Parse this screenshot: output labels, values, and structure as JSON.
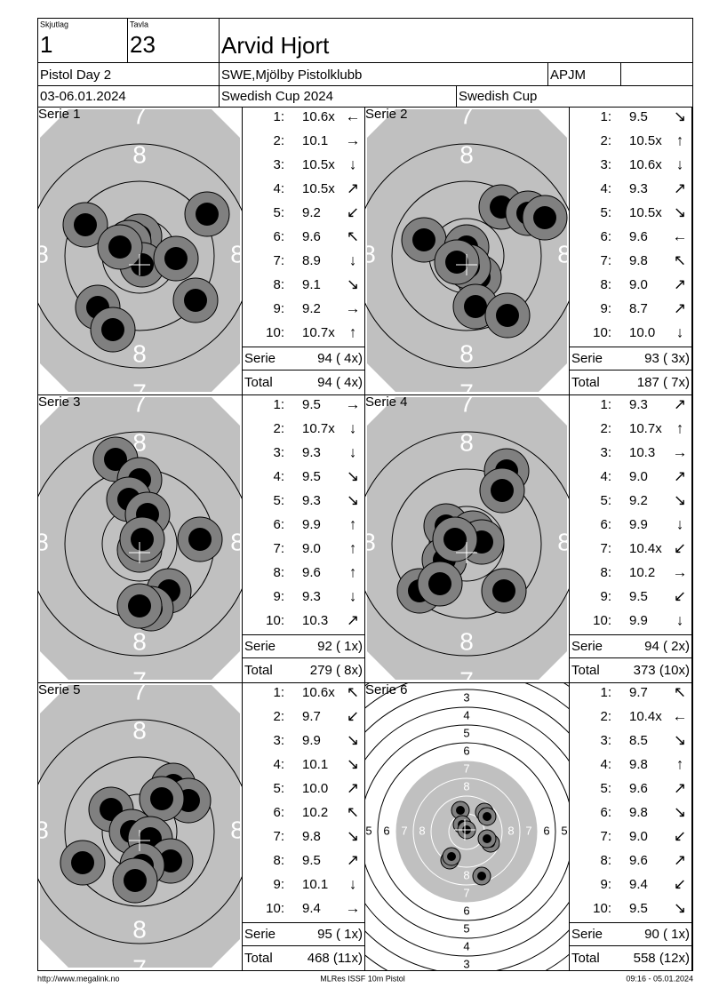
{
  "header": {
    "squad_label": "Skjutlag",
    "squad": "1",
    "target_label": "Tavla",
    "target": "23",
    "name": "Arvid Hjort",
    "event": "Pistol Day 2",
    "club": "SWE,Mjölby Pistolklubb",
    "class": "APJM",
    "dates": "03-06.01.2024",
    "competition": "Swedish Cup 2024",
    "cup": "Swedish Cup"
  },
  "labels": {
    "serie": "Serie",
    "total": "Total"
  },
  "zoom_target_labels": {
    "outer": "7",
    "inner": "8"
  },
  "full_target_labels": [
    "3",
    "4",
    "5",
    "6",
    "7",
    "8"
  ],
  "series": [
    {
      "title": "Serie 1",
      "shots": [
        {
          "number": "1:",
          "score": "10.6x",
          "direction": "←"
        },
        {
          "number": "2:",
          "score": "10.1",
          "direction": "→"
        },
        {
          "number": "3:",
          "score": "10.5x",
          "direction": "↓"
        },
        {
          "number": "4:",
          "score": "10.5x",
          "direction": "↗"
        },
        {
          "number": "5:",
          "score": "9.2",
          "direction": "↙"
        },
        {
          "number": "6:",
          "score": "9.6",
          "direction": "↖"
        },
        {
          "number": "7:",
          "score": "8.9",
          "direction": "↓"
        },
        {
          "number": "8:",
          "score": "9.1",
          "direction": "↘"
        },
        {
          "number": "9:",
          "score": "9.2",
          "direction": "→"
        },
        {
          "number": "10:",
          "score": "10.7x",
          "direction": "↑"
        }
      ],
      "serie_sum": "94 ( 4x)",
      "total": "94 ( 4x)"
    },
    {
      "title": "Serie 2",
      "shots": [
        {
          "number": "1:",
          "score": "9.5",
          "direction": "↘"
        },
        {
          "number": "2:",
          "score": "10.5x",
          "direction": "↑"
        },
        {
          "number": "3:",
          "score": "10.6x",
          "direction": "↓"
        },
        {
          "number": "4:",
          "score": "9.3",
          "direction": "↗"
        },
        {
          "number": "5:",
          "score": "10.5x",
          "direction": "↘"
        },
        {
          "number": "6:",
          "score": "9.6",
          "direction": "←"
        },
        {
          "number": "7:",
          "score": "9.8",
          "direction": "↖"
        },
        {
          "number": "8:",
          "score": "9.0",
          "direction": "↗"
        },
        {
          "number": "9:",
          "score": "8.7",
          "direction": "↗"
        },
        {
          "number": "10:",
          "score": "10.0",
          "direction": "↓"
        }
      ],
      "serie_sum": "93 ( 3x)",
      "total": "187 ( 7x)"
    },
    {
      "title": "Serie 3",
      "shots": [
        {
          "number": "1:",
          "score": "9.5",
          "direction": "→"
        },
        {
          "number": "2:",
          "score": "10.7x",
          "direction": "↓"
        },
        {
          "number": "3:",
          "score": "9.3",
          "direction": "↓"
        },
        {
          "number": "4:",
          "score": "9.5",
          "direction": "↘"
        },
        {
          "number": "5:",
          "score": "9.3",
          "direction": "↘"
        },
        {
          "number": "6:",
          "score": "9.9",
          "direction": "↑"
        },
        {
          "number": "7:",
          "score": "9.0",
          "direction": "↑"
        },
        {
          "number": "8:",
          "score": "9.6",
          "direction": "↑"
        },
        {
          "number": "9:",
          "score": "9.3",
          "direction": "↓"
        },
        {
          "number": "10:",
          "score": "10.3",
          "direction": "↗"
        }
      ],
      "serie_sum": "92 ( 1x)",
      "total": "279 ( 8x)"
    },
    {
      "title": "Serie 4",
      "shots": [
        {
          "number": "1:",
          "score": "9.3",
          "direction": "↗"
        },
        {
          "number": "2:",
          "score": "10.7x",
          "direction": "↑"
        },
        {
          "number": "3:",
          "score": "10.3",
          "direction": "→"
        },
        {
          "number": "4:",
          "score": "9.0",
          "direction": "↗"
        },
        {
          "number": "5:",
          "score": "9.2",
          "direction": "↘"
        },
        {
          "number": "6:",
          "score": "9.9",
          "direction": "↓"
        },
        {
          "number": "7:",
          "score": "10.4x",
          "direction": "↙"
        },
        {
          "number": "8:",
          "score": "10.2",
          "direction": "→"
        },
        {
          "number": "9:",
          "score": "9.5",
          "direction": "↙"
        },
        {
          "number": "10:",
          "score": "9.9",
          "direction": "↓"
        }
      ],
      "serie_sum": "94 ( 2x)",
      "total": "373 (10x)"
    },
    {
      "title": "Serie 5",
      "shots": [
        {
          "number": "1:",
          "score": "10.6x",
          "direction": "↖"
        },
        {
          "number": "2:",
          "score": "9.7",
          "direction": "↙"
        },
        {
          "number": "3:",
          "score": "9.9",
          "direction": "↘"
        },
        {
          "number": "4:",
          "score": "10.1",
          "direction": "↘"
        },
        {
          "number": "5:",
          "score": "10.0",
          "direction": "↗"
        },
        {
          "number": "6:",
          "score": "10.2",
          "direction": "↖"
        },
        {
          "number": "7:",
          "score": "9.8",
          "direction": "↘"
        },
        {
          "number": "8:",
          "score": "9.5",
          "direction": "↗"
        },
        {
          "number": "9:",
          "score": "10.1",
          "direction": "↓"
        },
        {
          "number": "10:",
          "score": "9.4",
          "direction": "→"
        }
      ],
      "serie_sum": "95 ( 1x)",
      "total": "468 (11x)"
    },
    {
      "title": "Serie 6",
      "shots": [
        {
          "number": "1:",
          "score": "9.7",
          "direction": "↖"
        },
        {
          "number": "2:",
          "score": "10.4x",
          "direction": "←"
        },
        {
          "number": "3:",
          "score": "8.5",
          "direction": "↘"
        },
        {
          "number": "4:",
          "score": "9.8",
          "direction": "↑"
        },
        {
          "number": "5:",
          "score": "9.6",
          "direction": "↗"
        },
        {
          "number": "6:",
          "score": "9.8",
          "direction": "↘"
        },
        {
          "number": "7:",
          "score": "9.0",
          "direction": "↙"
        },
        {
          "number": "8:",
          "score": "9.6",
          "direction": "↗"
        },
        {
          "number": "9:",
          "score": "9.4",
          "direction": "↙"
        },
        {
          "number": "10:",
          "score": "9.5",
          "direction": "↘"
        }
      ],
      "serie_sum": "90 ( 1x)",
      "total": "558 (12x)"
    }
  ],
  "footer": {
    "url": "http://www.megalink.no",
    "program": "MLRes ISSF 10m Pistol",
    "timestamp": "09:16 - 05.01.2024"
  }
}
